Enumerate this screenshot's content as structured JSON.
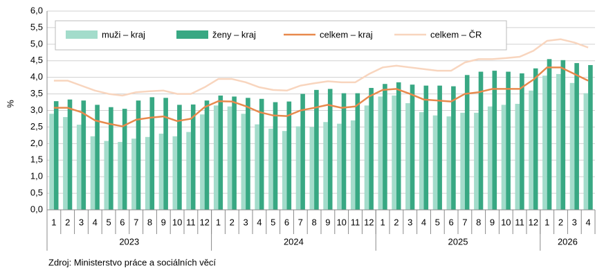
{
  "chart_data": {
    "type": "bar",
    "y_label": "%",
    "source": "Zdroj: Ministerstvo práce a sociálních věcí",
    "categories": [
      "1",
      "2",
      "3",
      "4",
      "5",
      "6",
      "7",
      "8",
      "9",
      "10",
      "11",
      "12",
      "1",
      "2",
      "3",
      "4",
      "5",
      "6",
      "7",
      "8",
      "9",
      "10",
      "11",
      "12",
      "1",
      "2",
      "3",
      "4",
      "5",
      "6",
      "7",
      "8",
      "9",
      "10",
      "11",
      "12",
      "1",
      "2",
      "3",
      "4"
    ],
    "groups": [
      {
        "label": "2023",
        "count": 12
      },
      {
        "label": "2024",
        "count": 12
      },
      {
        "label": "2025",
        "count": 12
      },
      {
        "label": "2026",
        "count": 4
      }
    ],
    "ylim": [
      0,
      6
    ],
    "yticks": [
      {
        "value": 0,
        "label": "0,0"
      },
      {
        "value": 0.5,
        "label": "0,5"
      },
      {
        "value": 1,
        "label": "1,0"
      },
      {
        "value": 1.5,
        "label": "1,5"
      },
      {
        "value": 2,
        "label": "2,0"
      },
      {
        "value": 2.5,
        "label": "2,5"
      },
      {
        "value": 3,
        "label": "3,0"
      },
      {
        "value": 3.5,
        "label": "3,5"
      },
      {
        "value": 4,
        "label": "4,0"
      },
      {
        "value": 4.5,
        "label": "4,5"
      },
      {
        "value": 5,
        "label": "5,0"
      },
      {
        "value": 5.5,
        "label": "5,5"
      },
      {
        "value": 6,
        "label": "6,0"
      }
    ],
    "grid": true,
    "series": [
      {
        "name": "muži – kraj",
        "kind": "bar",
        "color": "#a3dccb",
        "values": [
          2.9,
          2.8,
          2.57,
          2.22,
          2.08,
          2.05,
          2.15,
          2.2,
          2.3,
          2.22,
          2.35,
          2.88,
          3.15,
          3.12,
          2.9,
          2.58,
          2.45,
          2.38,
          2.52,
          2.5,
          2.65,
          2.6,
          2.7,
          3.15,
          3.42,
          3.45,
          3.22,
          2.95,
          2.85,
          2.82,
          2.93,
          2.93,
          3.12,
          3.17,
          3.2,
          3.6,
          4.05,
          4.1,
          3.83,
          3.52
        ]
      },
      {
        "name": "ženy – kraj",
        "kind": "bar",
        "color": "#38a883",
        "values": [
          3.28,
          3.33,
          3.3,
          3.17,
          3.1,
          3.05,
          3.3,
          3.4,
          3.38,
          3.17,
          3.18,
          3.3,
          3.45,
          3.42,
          3.38,
          3.35,
          3.25,
          3.27,
          3.5,
          3.62,
          3.65,
          3.52,
          3.52,
          3.68,
          3.8,
          3.85,
          3.78,
          3.75,
          3.75,
          3.73,
          4.07,
          4.17,
          4.2,
          4.17,
          4.12,
          4.27,
          4.55,
          4.52,
          4.43,
          4.37
        ]
      },
      {
        "name": "celkem – kraj",
        "kind": "line",
        "color": "#e8894c",
        "values": [
          3.08,
          3.08,
          2.95,
          2.7,
          2.6,
          2.52,
          2.72,
          2.78,
          2.82,
          2.68,
          2.75,
          3.1,
          3.28,
          3.27,
          3.13,
          2.95,
          2.85,
          2.83,
          3.0,
          3.08,
          3.17,
          3.08,
          3.12,
          3.42,
          3.62,
          3.65,
          3.5,
          3.33,
          3.3,
          3.27,
          3.5,
          3.55,
          3.65,
          3.65,
          3.65,
          3.93,
          4.3,
          4.3,
          4.1,
          3.9
        ]
      },
      {
        "name": "celkem – ČR",
        "kind": "line",
        "color": "#f8d5be",
        "values": [
          3.9,
          3.9,
          3.75,
          3.6,
          3.5,
          3.45,
          3.55,
          3.58,
          3.6,
          3.5,
          3.5,
          3.7,
          3.95,
          3.95,
          3.85,
          3.7,
          3.62,
          3.6,
          3.75,
          3.82,
          3.88,
          3.85,
          3.85,
          4.1,
          4.3,
          4.35,
          4.3,
          4.25,
          4.2,
          4.2,
          4.45,
          4.55,
          4.55,
          4.58,
          4.62,
          4.8,
          5.1,
          5.15,
          5.05,
          4.9
        ]
      }
    ]
  }
}
